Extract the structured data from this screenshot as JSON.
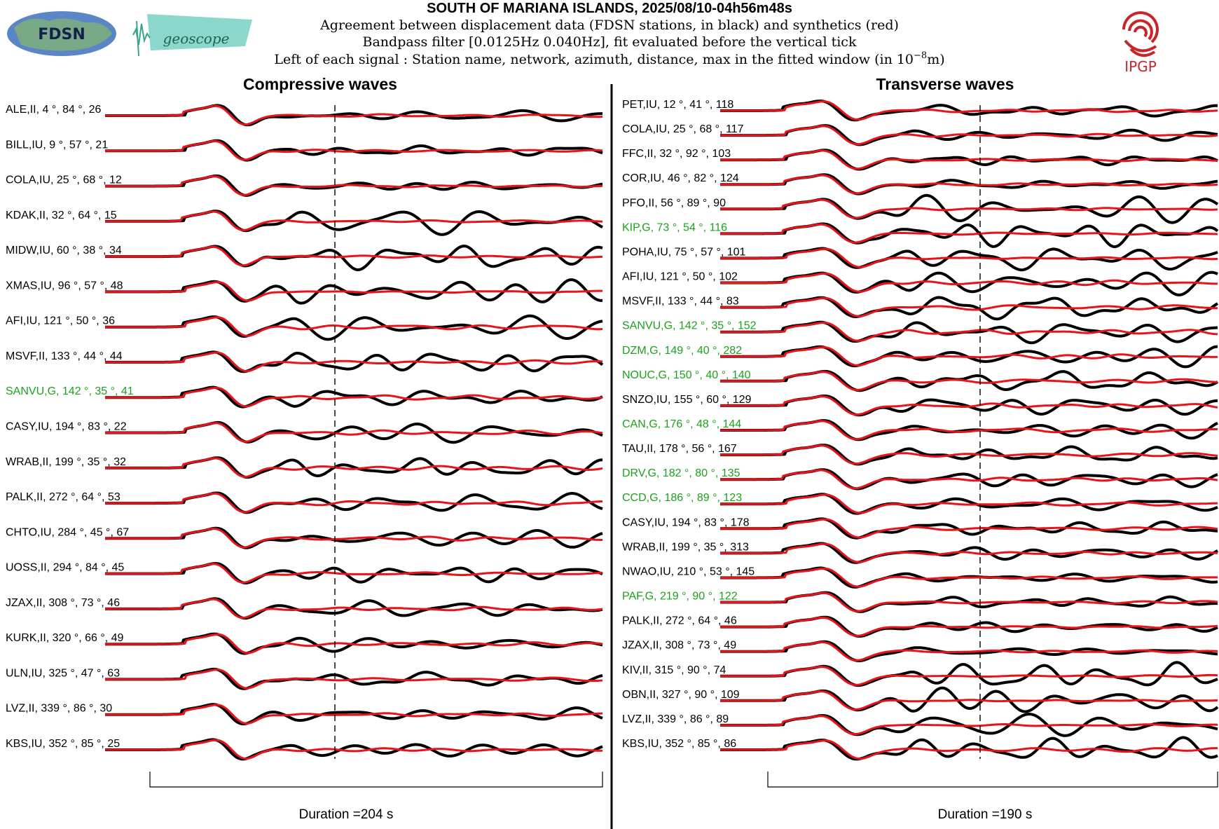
{
  "header": {
    "title": "SOUTH OF MARIANA ISLANDS, 2025/08/10-04h56m48s",
    "line1": "Agreement between displacement data (FDSN stations, in black) and synthetics (red)",
    "line2": "Bandpass filter [0.0125Hz 0.040Hz], fit evaluated before the vertical tick",
    "line3_prefix": "Left of each signal : Station name, network, azimuth, distance, max in the fitted window (in 10",
    "line3_exp": "−8",
    "line3_suffix": "m)"
  },
  "logos": {
    "fdsn": "FDSN",
    "geoscope": "geoscope",
    "ipgp": "IPGP"
  },
  "colors": {
    "data": "#000000",
    "synthetic": "#e8141b",
    "highlight_label": "#1aa31a",
    "normal_label": "#000000"
  },
  "chart_data": [
    {
      "type": "line",
      "title": "Compressive waves",
      "duration_label": "Duration =204 s",
      "series_legend": [
        "data (black)",
        "synthetics (red)"
      ],
      "stations": [
        {
          "label": "ALE,II, 4 °, 84 °, 26",
          "green": false
        },
        {
          "label": "BILL,IU, 9 °, 57 °, 21",
          "green": false
        },
        {
          "label": "COLA,IU, 25 °, 68 °, 12",
          "green": false
        },
        {
          "label": "KDAK,II, 32 °, 64 °, 15",
          "green": false
        },
        {
          "label": "MIDW,IU, 60 °, 38 °, 34",
          "green": false
        },
        {
          "label": "XMAS,IU, 96 °, 57 °, 48",
          "green": false
        },
        {
          "label": "AFI,IU, 121 °, 50 °, 36",
          "green": false
        },
        {
          "label": "MSVF,II, 133 °, 44 °, 44",
          "green": false
        },
        {
          "label": "SANVU,G, 142 °, 35 °, 41",
          "green": true
        },
        {
          "label": "CASY,IU, 194 °, 83 °, 22",
          "green": false
        },
        {
          "label": "WRAB,II, 199 °, 35 °, 32",
          "green": false
        },
        {
          "label": "PALK,II, 272 °, 64 °, 53",
          "green": false
        },
        {
          "label": "CHTO,IU, 284 °, 45 °, 67",
          "green": false
        },
        {
          "label": "UOSS,II, 294 °, 84 °, 45",
          "green": false
        },
        {
          "label": "JZAX,II, 308 °, 73 °, 46",
          "green": false
        },
        {
          "label": "KURK,II, 320 °, 66 °, 49",
          "green": false
        },
        {
          "label": "ULN,IU, 325 °, 47 °, 63",
          "green": false
        },
        {
          "label": "LVZ,II, 339 °, 86 °, 30",
          "green": false
        },
        {
          "label": "KBS,IU, 352 °, 85 °, 25",
          "green": false
        }
      ]
    },
    {
      "type": "line",
      "title": "Transverse waves",
      "duration_label": "Duration =190 s",
      "series_legend": [
        "data (black)",
        "synthetics (red)"
      ],
      "stations": [
        {
          "label": "PET,IU, 12 °, 41 °, 118",
          "green": false
        },
        {
          "label": "COLA,IU, 25 °, 68 °, 117",
          "green": false
        },
        {
          "label": "FFC,II, 32 °, 92 °, 103",
          "green": false
        },
        {
          "label": "COR,IU, 46 °, 82 °, 124",
          "green": false
        },
        {
          "label": "PFO,II, 56 °, 89 °, 90",
          "green": false
        },
        {
          "label": "KIP,G, 73 °, 54 °, 116",
          "green": true
        },
        {
          "label": "POHA,IU, 75 °, 57 °, 101",
          "green": false
        },
        {
          "label": "AFI,IU, 121 °, 50 °, 102",
          "green": false
        },
        {
          "label": "MSVF,II, 133 °, 44 °, 83",
          "green": false
        },
        {
          "label": "SANVU,G, 142 °, 35 °, 152",
          "green": true
        },
        {
          "label": "DZM,G, 149 °, 40 °, 282",
          "green": true
        },
        {
          "label": "NOUC,G, 150 °, 40 °, 140",
          "green": true
        },
        {
          "label": "SNZO,IU, 155 °, 60 °, 129",
          "green": false
        },
        {
          "label": "CAN,G, 176 °, 48 °, 144",
          "green": true
        },
        {
          "label": "TAU,II, 178 °, 56 °, 167",
          "green": false
        },
        {
          "label": "DRV,G, 182 °, 80 °, 135",
          "green": true
        },
        {
          "label": "CCD,G, 186 °, 89 °, 123",
          "green": true
        },
        {
          "label": "CASY,IU, 194 °, 83 °, 178",
          "green": false
        },
        {
          "label": "WRAB,II, 199 °, 35 °, 313",
          "green": false
        },
        {
          "label": "NWAO,IU, 210 °, 53 °, 145",
          "green": false
        },
        {
          "label": "PAF,G, 219 °, 90 °, 122",
          "green": true
        },
        {
          "label": "PALK,II, 272 °, 64 °, 46",
          "green": false
        },
        {
          "label": "JZAX,II, 308 °, 73 °, 49",
          "green": false
        },
        {
          "label": "KIV,II, 315 °, 90 °, 74",
          "green": false
        },
        {
          "label": "OBN,II, 327 °, 90 °, 109",
          "green": false
        },
        {
          "label": "LVZ,II, 339 °, 86 °, 89",
          "green": false
        },
        {
          "label": "KBS,IU, 352 °, 85 °, 86",
          "green": false
        }
      ]
    }
  ]
}
